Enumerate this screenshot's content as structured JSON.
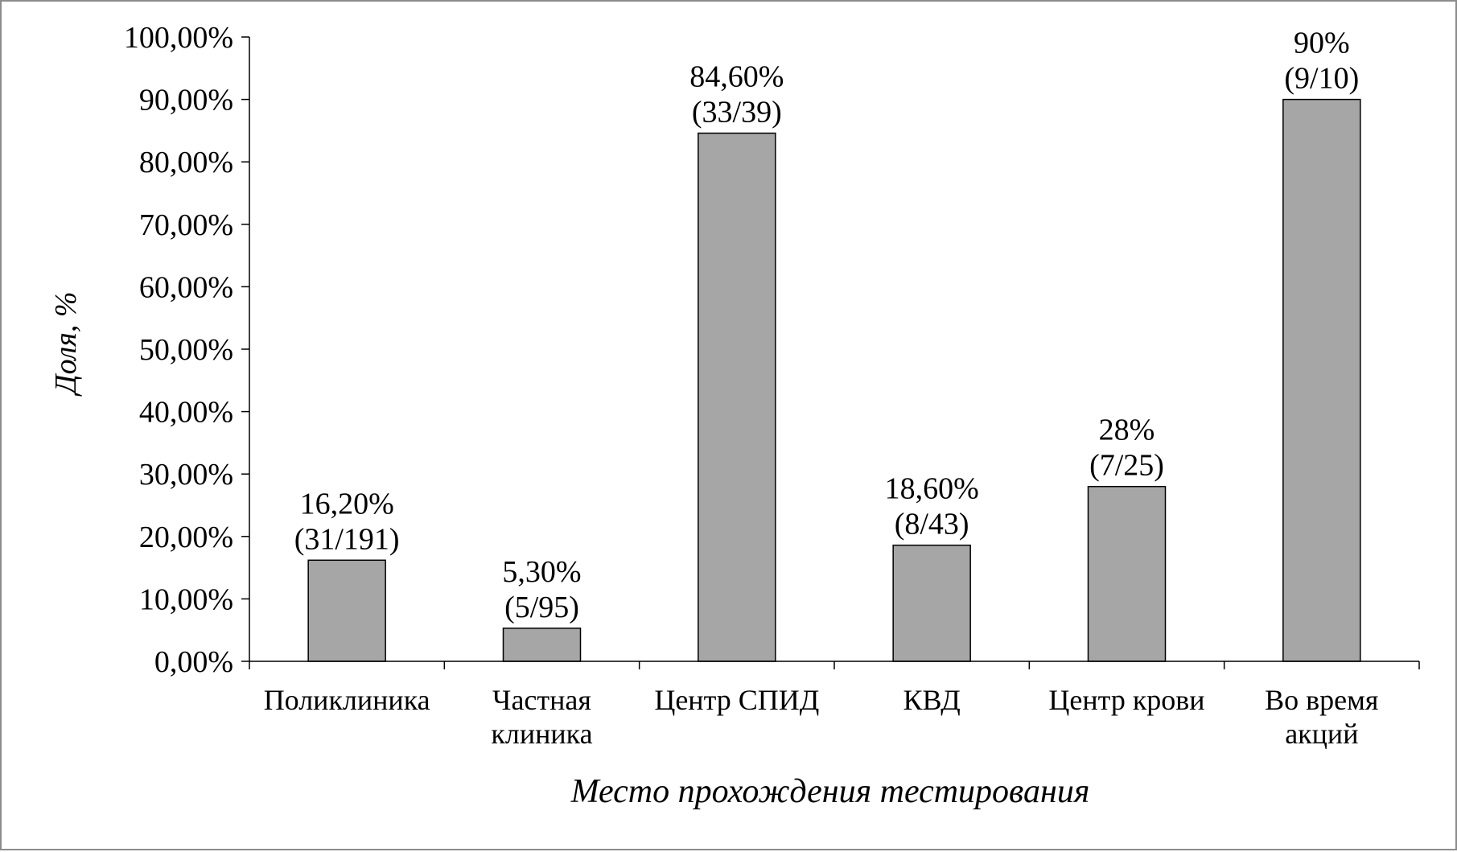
{
  "chart_data": {
    "type": "bar",
    "categories": [
      [
        "Поликлиника"
      ],
      [
        "Частная",
        "клиника"
      ],
      [
        "Центр СПИД"
      ],
      [
        "КВД"
      ],
      [
        "Центр крови"
      ],
      [
        "Во время",
        "акций"
      ]
    ],
    "values": [
      16.2,
      5.3,
      84.6,
      18.6,
      28,
      90
    ],
    "data_labels": [
      [
        "16,20%",
        "(31/191)"
      ],
      [
        "5,30%",
        "(5/95)"
      ],
      [
        "84,60%",
        "(33/39)"
      ],
      [
        "18,60%",
        "(8/43)"
      ],
      [
        "28%",
        "(7/25)"
      ],
      [
        "90%",
        "(9/10)"
      ]
    ],
    "xlabel": "Место прохождения тестирования",
    "ylabel": "Доля, %",
    "ylim": [
      0,
      100
    ],
    "yticks": [
      0,
      10,
      20,
      30,
      40,
      50,
      60,
      70,
      80,
      90,
      100
    ],
    "ytick_labels": [
      "0,00%",
      "10,00%",
      "20,00%",
      "30,00%",
      "40,00%",
      "50,00%",
      "60,00%",
      "70,00%",
      "80,00%",
      "90,00%",
      "100,00%"
    ],
    "grid": false,
    "legend": "none",
    "bar_color": "#a6a6a6",
    "bar_edge_color": "#000000"
  }
}
